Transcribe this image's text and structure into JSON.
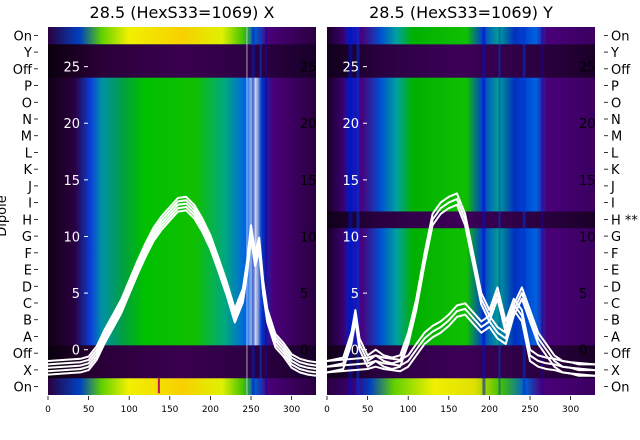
{
  "chart_data": {
    "type": "heatmap",
    "dipole_axis_label": "Dipole",
    "row_labels_bottom_to_top": [
      "On",
      "X",
      "Off",
      "A",
      "B",
      "C",
      "D",
      "E",
      "F",
      "G",
      "H",
      "I",
      "J",
      "K",
      "L",
      "M",
      "N",
      "O",
      "P",
      "Off",
      "Y",
      "On"
    ],
    "panels": [
      {
        "title": "28.5 (HexS33=1069) X",
        "row_labels_bottom_to_top": [
          "On",
          "X",
          "Off",
          "A",
          "B",
          "C",
          "D",
          "E",
          "F",
          "G",
          "H",
          "I",
          "J",
          "K",
          "L",
          "M",
          "N",
          "O",
          "P",
          "Off",
          "Y",
          "On"
        ],
        "x_ticks": [
          0,
          50,
          100,
          150,
          200,
          250,
          300
        ],
        "xlim": [
          0,
          330
        ],
        "overlay_y_ticks": [
          0,
          5,
          10,
          15,
          20,
          25
        ],
        "overlay_ylim": [
          -4,
          28.5
        ],
        "overlay_curve": {
          "x": [
            0,
            20,
            40,
            50,
            60,
            70,
            80,
            90,
            100,
            110,
            120,
            130,
            140,
            150,
            160,
            170,
            180,
            190,
            200,
            210,
            220,
            230,
            240,
            245,
            250,
            255,
            260,
            265,
            270,
            280,
            290,
            300,
            310,
            320,
            330
          ],
          "y": [
            -1.6,
            -1.5,
            -1.4,
            -1.2,
            -0.3,
            1.2,
            2.5,
            3.8,
            5.5,
            7.2,
            8.8,
            10.2,
            11.2,
            12.0,
            12.8,
            12.9,
            12.2,
            11.0,
            9.5,
            7.5,
            5.4,
            3.0,
            4.8,
            7.2,
            10.4,
            8.0,
            9.3,
            5.5,
            3.0,
            0.8,
            0.0,
            -1.0,
            -1.4,
            -1.6,
            -1.7
          ]
        }
      },
      {
        "title": "28.5 (HexS33=1069) Y",
        "row_labels_bottom_to_top": [
          "On",
          "X",
          "Off",
          "A",
          "B",
          "C",
          "D",
          "E",
          "F",
          "G",
          "H **",
          "I",
          "J",
          "K",
          "L",
          "M",
          "N",
          "O",
          "P",
          "Off",
          "Y",
          "On"
        ],
        "x_ticks": [
          0,
          50,
          100,
          150,
          200,
          250,
          300
        ],
        "xlim": [
          0,
          330
        ],
        "overlay_y_ticks": [
          0,
          5,
          10,
          15,
          20,
          25
        ],
        "overlay_ylim": [
          -4,
          28.5
        ],
        "overlay_curves": [
          {
            "x": [
              0,
              20,
              30,
              35,
              40,
              50,
              60,
              70,
              80,
              90,
              100,
              110,
              120,
              130,
              140,
              150,
              160,
              170,
              180,
              190,
              200,
              210,
              220,
              230,
              240,
              250,
              260,
              270,
              280,
              290,
              300,
              310,
              320,
              330
            ],
            "y": [
              -1.5,
              -1.2,
              1.0,
              3.0,
              0.5,
              -1.0,
              -0.5,
              -1.0,
              -1.2,
              -1.0,
              1.0,
              4.0,
              8.0,
              11.5,
              12.5,
              13.0,
              13.3,
              11.5,
              8.0,
              4.5,
              3.0,
              5.0,
              2.0,
              4.0,
              3.0,
              -0.5,
              -1.0,
              -1.2,
              -1.3,
              -1.5,
              -1.6,
              -1.8,
              -1.8,
              -1.8
            ]
          },
          {
            "x": [
              0,
              50,
              60,
              70,
              80,
              90,
              100,
              110,
              120,
              130,
              140,
              150,
              160,
              170,
              180,
              190,
              200,
              210,
              220,
              230,
              240,
              250,
              260,
              270,
              280,
              290,
              300,
              330
            ],
            "y": [
              -1.5,
              -1.2,
              -1.0,
              -1.2,
              -1.3,
              -1.4,
              -1.0,
              0.0,
              1.0,
              1.6,
              2.0,
              2.6,
              3.4,
              3.6,
              2.8,
              2.0,
              2.5,
              1.5,
              1.0,
              3.5,
              5.0,
              3.0,
              1.0,
              0.0,
              -1.0,
              -1.5,
              -1.6,
              -1.8
            ]
          }
        ]
      }
    ],
    "colormap": "nipy_spectral",
    "colorbar": false,
    "grid": false,
    "legend": false
  }
}
